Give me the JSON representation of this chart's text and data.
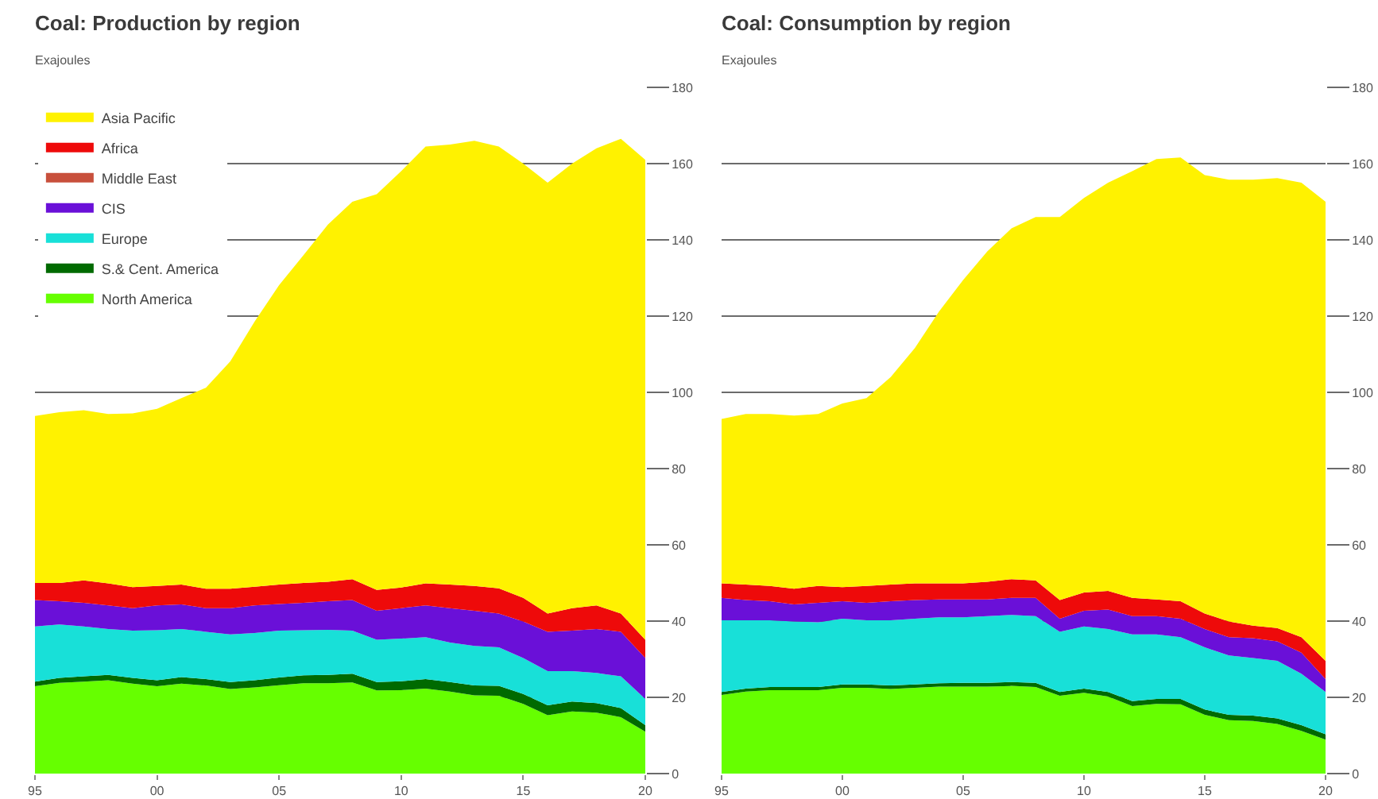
{
  "chart_data": [
    {
      "type": "area",
      "title": "Coal: Production by region",
      "subtitle": "Exajoules",
      "x": [
        1995,
        1996,
        1997,
        1998,
        1999,
        2000,
        2001,
        2002,
        2003,
        2004,
        2005,
        2006,
        2007,
        2008,
        2009,
        2010,
        2011,
        2012,
        2013,
        2014,
        2015,
        2016,
        2017,
        2018,
        2019,
        2020
      ],
      "xlim": [
        1995,
        2020
      ],
      "xticks": [
        {
          "value": 1995,
          "label": "95"
        },
        {
          "value": 2000,
          "label": "00"
        },
        {
          "value": 2005,
          "label": "05"
        },
        {
          "value": 2010,
          "label": "10"
        },
        {
          "value": 2015,
          "label": "15"
        },
        {
          "value": 2020,
          "label": "20"
        }
      ],
      "ylim": [
        0,
        180
      ],
      "yticks": [
        0,
        20,
        40,
        60,
        80,
        100,
        120,
        140,
        160,
        180
      ],
      "stacked": true,
      "grid": "y",
      "legend": "top left",
      "series": [
        {
          "name": "North America",
          "color": "#66ff00",
          "values": [
            22.9,
            23.8,
            24.1,
            24.5,
            23.6,
            22.9,
            23.6,
            23.1,
            22.2,
            22.6,
            23.2,
            23.7,
            23.7,
            23.9,
            21.8,
            21.9,
            22.3,
            21.5,
            20.5,
            20.4,
            18.3,
            15.3,
            16.3,
            16.0,
            14.8,
            11.0
          ]
        },
        {
          "name": "S.& Cent. America",
          "color": "#006a00",
          "values": [
            1.2,
            1.3,
            1.4,
            1.4,
            1.5,
            1.6,
            1.7,
            1.7,
            1.8,
            1.9,
            2.0,
            2.1,
            2.2,
            2.3,
            2.2,
            2.3,
            2.5,
            2.5,
            2.6,
            2.6,
            2.6,
            2.6,
            2.6,
            2.5,
            2.4,
            1.7
          ]
        },
        {
          "name": "Europe",
          "color": "#18e0d8",
          "values": [
            14.5,
            14.0,
            13.1,
            12.0,
            12.4,
            13.1,
            12.6,
            12.4,
            12.5,
            12.4,
            12.3,
            11.8,
            11.8,
            11.3,
            11.1,
            11.2,
            11.0,
            10.4,
            10.4,
            10.1,
            9.4,
            9.0,
            8.0,
            7.9,
            8.3,
            6.9
          ]
        },
        {
          "name": "CIS",
          "color": "#6a10d8",
          "values": [
            6.9,
            6.1,
            6.2,
            6.2,
            5.9,
            6.5,
            6.5,
            6.2,
            6.9,
            7.2,
            7.0,
            7.2,
            7.5,
            8.0,
            7.6,
            8.0,
            8.3,
            9.0,
            9.2,
            8.9,
            9.6,
            10.3,
            10.6,
            11.5,
            11.7,
            10.7
          ]
        },
        {
          "name": "Middle East",
          "color": "#c8503c",
          "values": [
            null,
            null,
            null,
            null,
            null,
            null,
            null,
            null,
            null,
            null,
            null,
            null,
            null,
            null,
            null,
            null,
            null,
            null,
            null,
            null,
            null,
            null,
            null,
            null,
            null,
            null
          ]
        },
        {
          "name": "Africa",
          "color": "#ee0a0a",
          "values": [
            4.5,
            4.8,
            5.9,
            5.8,
            5.5,
            5.1,
            5.2,
            5.1,
            5.1,
            4.9,
            5.1,
            5.2,
            5.1,
            5.5,
            5.5,
            5.4,
            5.8,
            6.2,
            6.5,
            6.6,
            6.2,
            4.8,
            5.9,
            6.2,
            4.8,
            4.8
          ]
        },
        {
          "name": "Asia Pacific",
          "color": "#fff200",
          "values": [
            43.8,
            44.8,
            44.6,
            44.4,
            45.6,
            46.5,
            48.9,
            52.7,
            59.6,
            69.6,
            78.5,
            86.0,
            93.7,
            99.0,
            103.8,
            109.2,
            114.6,
            115.4,
            116.8,
            115.9,
            113.9,
            113.0,
            116.6,
            119.9,
            124.5,
            125.9
          ]
        }
      ]
    },
    {
      "type": "area",
      "title": "Coal: Consumption by region",
      "subtitle": "Exajoules",
      "x": [
        1995,
        1996,
        1997,
        1998,
        1999,
        2000,
        2001,
        2002,
        2003,
        2004,
        2005,
        2006,
        2007,
        2008,
        2009,
        2010,
        2011,
        2012,
        2013,
        2014,
        2015,
        2016,
        2017,
        2018,
        2019,
        2020
      ],
      "xlim": [
        1995,
        2020
      ],
      "xticks": [
        {
          "value": 1995,
          "label": "95"
        },
        {
          "value": 2000,
          "label": "00"
        },
        {
          "value": 2005,
          "label": "05"
        },
        {
          "value": 2010,
          "label": "10"
        },
        {
          "value": 2015,
          "label": "15"
        },
        {
          "value": 2020,
          "label": "20"
        }
      ],
      "ylim": [
        0,
        180
      ],
      "yticks": [
        0,
        20,
        40,
        60,
        80,
        100,
        120,
        140,
        160,
        180
      ],
      "stacked": true,
      "grid": "y",
      "legend": false,
      "series": [
        {
          "color": "#66ff00",
          "values": [
            20.6,
            21.5,
            21.9,
            21.9,
            21.9,
            22.5,
            22.5,
            22.2,
            22.5,
            22.8,
            22.8,
            22.8,
            23.0,
            22.7,
            20.4,
            21.2,
            20.2,
            17.7,
            18.3,
            18.2,
            15.4,
            14.0,
            13.8,
            13.0,
            11.2,
            8.9
          ]
        },
        {
          "color": "#006a00",
          "values": [
            0.8,
            0.8,
            0.8,
            0.8,
            0.8,
            0.9,
            0.9,
            0.9,
            0.9,
            0.9,
            1.0,
            1.0,
            1.0,
            1.1,
            1.0,
            1.1,
            1.2,
            1.3,
            1.3,
            1.4,
            1.4,
            1.4,
            1.4,
            1.5,
            1.5,
            1.4
          ]
        },
        {
          "color": "#18e0d8",
          "values": [
            18.8,
            17.9,
            17.5,
            17.2,
            17.0,
            17.2,
            16.8,
            17.1,
            17.2,
            17.3,
            17.2,
            17.5,
            17.6,
            17.5,
            15.8,
            16.3,
            16.5,
            17.5,
            16.9,
            16.2,
            16.3,
            15.6,
            15.1,
            15.1,
            13.5,
            11.1
          ]
        },
        {
          "color": "#6a10d8",
          "values": [
            5.9,
            5.3,
            5.0,
            4.5,
            5.1,
            4.6,
            4.6,
            5.0,
            4.9,
            4.7,
            4.7,
            4.4,
            4.5,
            4.8,
            3.4,
            4.1,
            5.1,
            4.8,
            4.8,
            4.8,
            4.8,
            4.8,
            5.2,
            5.1,
            5.5,
            3.4
          ]
        },
        {
          "color": "#ee0a0a",
          "values": [
            3.8,
            4.1,
            4.0,
            4.1,
            4.4,
            3.7,
            4.4,
            4.4,
            4.4,
            4.2,
            4.2,
            4.6,
            4.9,
            4.6,
            4.9,
            4.8,
            4.9,
            4.8,
            4.4,
            4.6,
            4.1,
            4.1,
            3.3,
            3.5,
            4.1,
            4.8
          ]
        },
        {
          "color": "#fff200",
          "values": [
            43.1,
            44.7,
            45.1,
            45.4,
            45.1,
            48.2,
            49.3,
            54.4,
            61.7,
            71.3,
            79.6,
            86.7,
            92.0,
            95.3,
            100.5,
            103.5,
            107.1,
            111.9,
            115.5,
            116.4,
            115.0,
            115.9,
            117.0,
            118.0,
            119.2,
            120.4
          ]
        }
      ]
    }
  ]
}
